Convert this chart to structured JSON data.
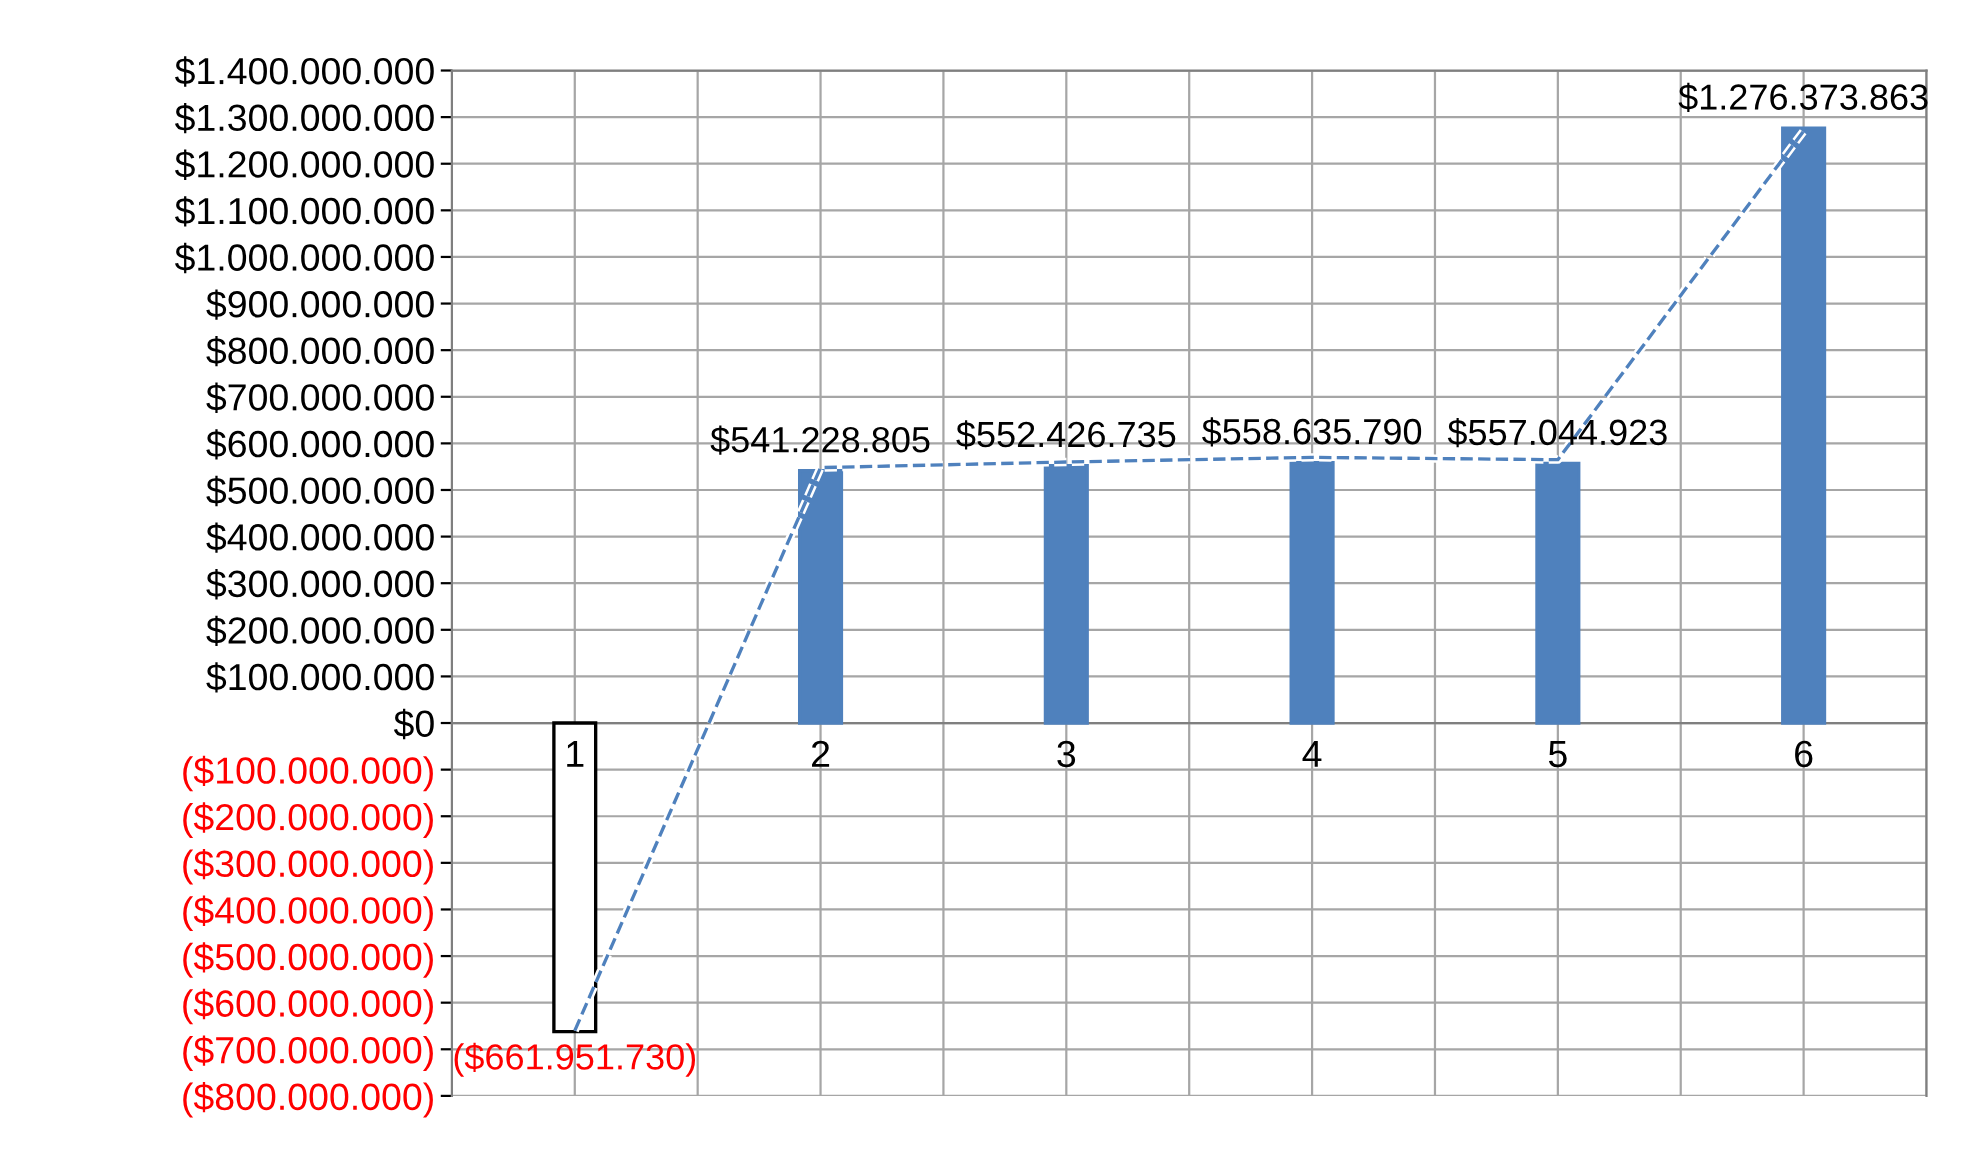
{
  "chart_data": {
    "type": "bar",
    "categories": [
      "1",
      "2",
      "3",
      "4",
      "5",
      "6"
    ],
    "series": [
      {
        "colors": [
          "#ffffff",
          "#4f81bd",
          "#4f81bd",
          "#4f81bd",
          "#4f81bd",
          "#4f81bd"
        ],
        "values": [
          -661951730,
          541228805,
          552426735,
          558635790,
          557044923,
          1276373863
        ],
        "value_labels": [
          "($661.951.730)",
          "$541.228.805",
          "$552.426.735",
          "$558.635.790",
          "$557.044.923",
          "$1.276.373.863"
        ]
      },
      {
        "type": "line",
        "color": "#4f81bd",
        "line_style": "dashed",
        "values": [
          -660000000,
          548000000,
          560000000,
          570000000,
          565000000,
          1270000000
        ]
      }
    ],
    "ylim": [
      -800000000,
      1400000000
    ],
    "yticks": [
      {
        "value": -800000000,
        "label": "($800.000.000)"
      },
      {
        "value": -700000000,
        "label": "($700.000.000)"
      },
      {
        "value": -600000000,
        "label": "($600.000.000)"
      },
      {
        "value": -500000000,
        "label": "($500.000.000)"
      },
      {
        "value": -400000000,
        "label": "($400.000.000)"
      },
      {
        "value": -300000000,
        "label": "($300.000.000)"
      },
      {
        "value": -200000000,
        "label": "($200.000.000)"
      },
      {
        "value": -100000000,
        "label": "($100.000.000)"
      },
      {
        "value": 0,
        "label": "$0"
      },
      {
        "value": 100000000,
        "label": "$100.000.000"
      },
      {
        "value": 200000000,
        "label": "$200.000.000"
      },
      {
        "value": 300000000,
        "label": "$300.000.000"
      },
      {
        "value": 400000000,
        "label": "$400.000.000"
      },
      {
        "value": 500000000,
        "label": "$500.000.000"
      },
      {
        "value": 600000000,
        "label": "$600.000.000"
      },
      {
        "value": 700000000,
        "label": "$700.000.000"
      },
      {
        "value": 800000000,
        "label": "$800.000.000"
      },
      {
        "value": 900000000,
        "label": "$900.000.000"
      },
      {
        "value": 1000000000,
        "label": "$1.000.000.000"
      },
      {
        "value": 1100000000,
        "label": "$1.100.000.000"
      },
      {
        "value": 1200000000,
        "label": "$1.200.000.000"
      },
      {
        "value": 1300000000,
        "label": "$1.300.000.000"
      },
      {
        "value": 1400000000,
        "label": "$1.400.000.000"
      }
    ],
    "grid": true
  }
}
